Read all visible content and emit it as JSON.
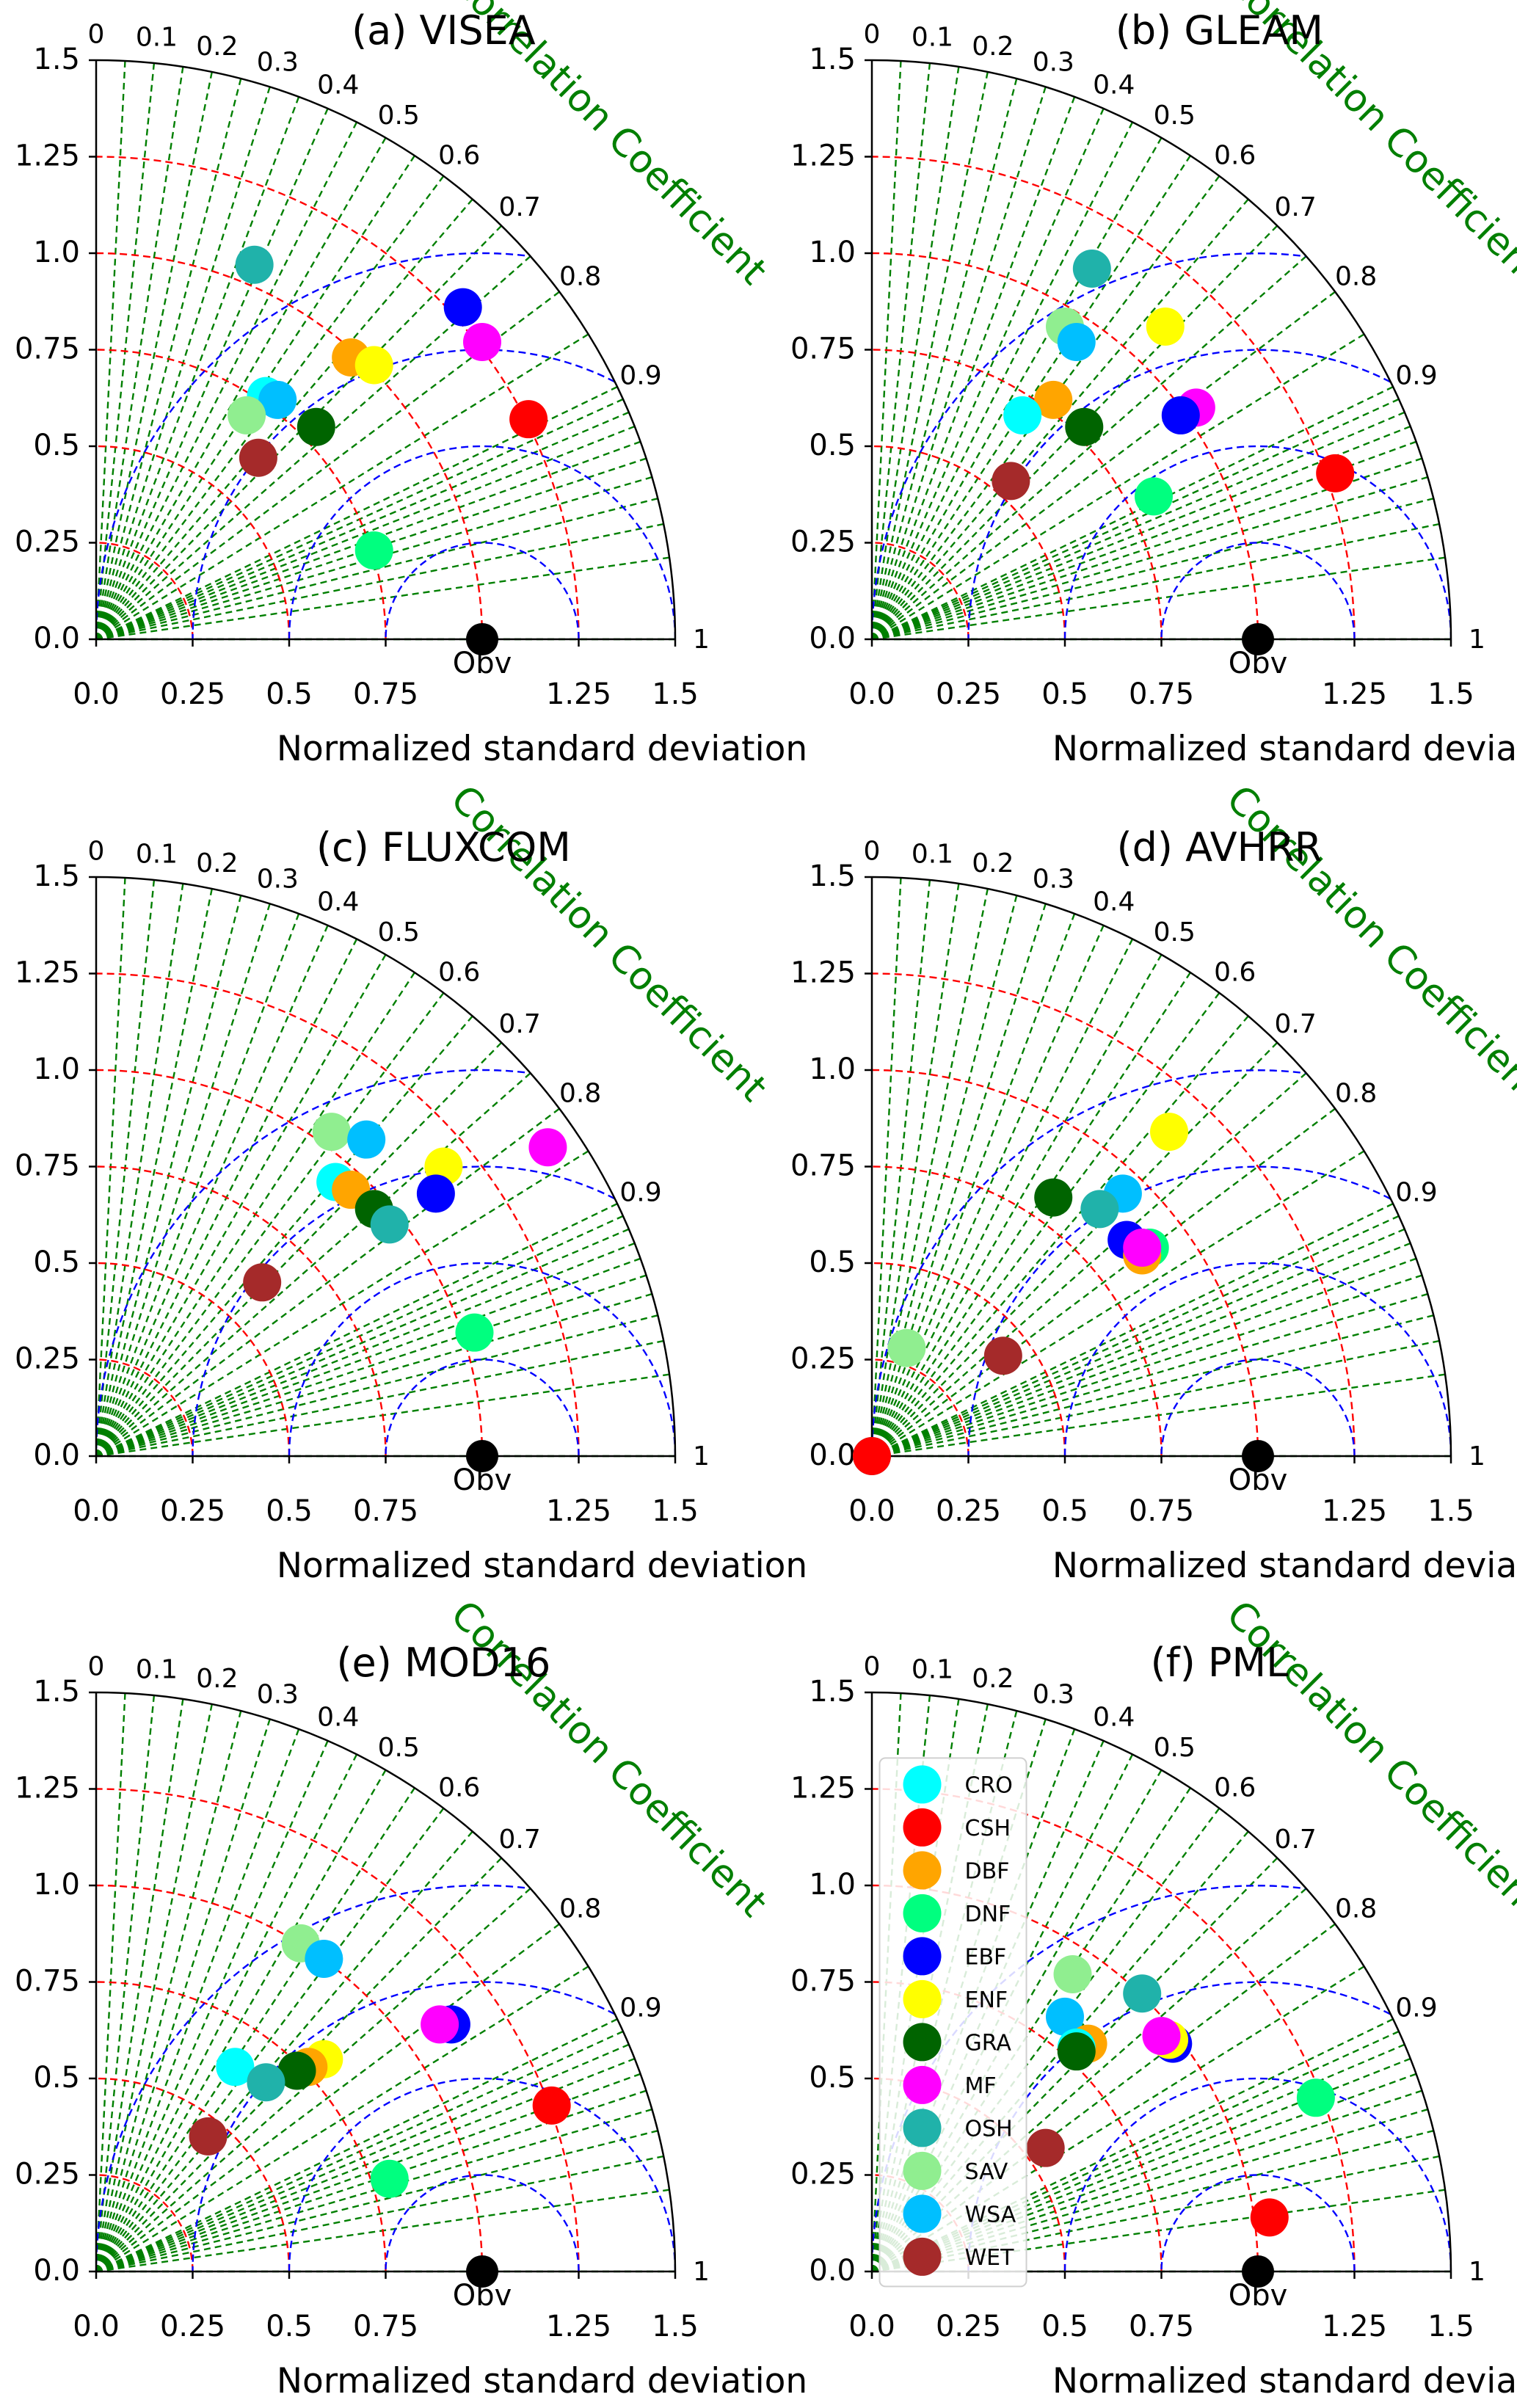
{
  "chart_data": {
    "type": "scatter",
    "subtype": "taylor-diagram",
    "xlabel": "Normalized standard deviation",
    "arc_label": "Correlation Coefficient",
    "reference_label": "Obv",
    "std_range": [
      0,
      1.5
    ],
    "std_ticks": [
      "0.0",
      "0.25",
      "0.5",
      "0.75",
      "1.0",
      "1.25",
      "1.5"
    ],
    "x_tick_labels": [
      "0.0",
      "0.25",
      "0.5",
      "0.75",
      "1.25",
      "1.5"
    ],
    "corr_ticks": [
      "0",
      "0.1",
      "0.2",
      "0.3",
      "0.4",
      "0.5",
      "0.6",
      "0.7",
      "0.8",
      "0.9",
      "1"
    ],
    "legend_panel": "(f) PML",
    "categories": [
      "CRO",
      "CSH",
      "DBF",
      "DNF",
      "EBF",
      "ENF",
      "GRA",
      "MF",
      "OSH",
      "SAV",
      "WSA",
      "WET"
    ],
    "colors": {
      "CRO": "#00ffff",
      "CSH": "#ff0000",
      "DBF": "#ffa500",
      "DNF": "#00ff7f",
      "EBF": "#0000ff",
      "ENF": "#ffff00",
      "GRA": "#006400",
      "MF": "#ff00ff",
      "OSH": "#20b2aa",
      "SAV": "#90ee90",
      "WSA": "#00bfff",
      "WET": "#a52a2a",
      "obs": "#000000",
      "rms_arcs": "#0000ff",
      "std_arcs": "#ff0000",
      "corr_lines": "#007f00"
    },
    "panels": [
      {
        "title": "(a) VISEA",
        "points": [
          {
            "cat": "OSH",
            "x": 0.41,
            "y": 0.97
          },
          {
            "cat": "EBF",
            "x": 0.95,
            "y": 0.86
          },
          {
            "cat": "MF",
            "x": 1.0,
            "y": 0.77
          },
          {
            "cat": "DBF",
            "x": 0.66,
            "y": 0.73
          },
          {
            "cat": "ENF",
            "x": 0.72,
            "y": 0.71
          },
          {
            "cat": "CRO",
            "x": 0.44,
            "y": 0.63
          },
          {
            "cat": "WSA",
            "x": 0.47,
            "y": 0.62
          },
          {
            "cat": "SAV",
            "x": 0.39,
            "y": 0.58
          },
          {
            "cat": "GRA",
            "x": 0.57,
            "y": 0.55
          },
          {
            "cat": "CSH",
            "x": 1.12,
            "y": 0.57
          },
          {
            "cat": "WET",
            "x": 0.42,
            "y": 0.47
          },
          {
            "cat": "DNF",
            "x": 0.72,
            "y": 0.23
          }
        ]
      },
      {
        "title": "(b) GLEAM",
        "points": [
          {
            "cat": "OSH",
            "x": 0.57,
            "y": 0.96
          },
          {
            "cat": "SAV",
            "x": 0.5,
            "y": 0.81
          },
          {
            "cat": "ENF",
            "x": 0.76,
            "y": 0.81
          },
          {
            "cat": "WSA",
            "x": 0.53,
            "y": 0.77
          },
          {
            "cat": "DBF",
            "x": 0.47,
            "y": 0.62
          },
          {
            "cat": "MF",
            "x": 0.84,
            "y": 0.6
          },
          {
            "cat": "EBF",
            "x": 0.8,
            "y": 0.58
          },
          {
            "cat": "CRO",
            "x": 0.39,
            "y": 0.58
          },
          {
            "cat": "GRA",
            "x": 0.55,
            "y": 0.55
          },
          {
            "cat": "CSH",
            "x": 1.2,
            "y": 0.43
          },
          {
            "cat": "WET",
            "x": 0.36,
            "y": 0.41
          },
          {
            "cat": "DNF",
            "x": 0.73,
            "y": 0.37
          }
        ]
      },
      {
        "title": "(c) FLUXCOM",
        "points": [
          {
            "cat": "SAV",
            "x": 0.61,
            "y": 0.84
          },
          {
            "cat": "WSA",
            "x": 0.7,
            "y": 0.82
          },
          {
            "cat": "MF",
            "x": 1.17,
            "y": 0.8
          },
          {
            "cat": "ENF",
            "x": 0.9,
            "y": 0.75
          },
          {
            "cat": "CRO",
            "x": 0.62,
            "y": 0.71
          },
          {
            "cat": "DBF",
            "x": 0.66,
            "y": 0.69
          },
          {
            "cat": "EBF",
            "x": 0.88,
            "y": 0.68
          },
          {
            "cat": "GRA",
            "x": 0.72,
            "y": 0.64
          },
          {
            "cat": "OSH",
            "x": 0.76,
            "y": 0.6
          },
          {
            "cat": "WET",
            "x": 0.43,
            "y": 0.45
          },
          {
            "cat": "DNF",
            "x": 0.98,
            "y": 0.32
          }
        ]
      },
      {
        "title": "(d) AVHRR",
        "points": [
          {
            "cat": "ENF",
            "x": 0.77,
            "y": 0.84
          },
          {
            "cat": "GRA",
            "x": 0.47,
            "y": 0.67
          },
          {
            "cat": "WSA",
            "x": 0.65,
            "y": 0.68
          },
          {
            "cat": "OSH",
            "x": 0.59,
            "y": 0.64
          },
          {
            "cat": "EBF",
            "x": 0.66,
            "y": 0.56
          },
          {
            "cat": "DNF",
            "x": 0.72,
            "y": 0.54
          },
          {
            "cat": "DBF",
            "x": 0.7,
            "y": 0.52
          },
          {
            "cat": "MF",
            "x": 0.7,
            "y": 0.54
          },
          {
            "cat": "SAV",
            "x": 0.09,
            "y": 0.28
          },
          {
            "cat": "WET",
            "x": 0.34,
            "y": 0.26
          },
          {
            "cat": "CRO",
            "x": 0.0,
            "y": 0.0
          },
          {
            "cat": "CSH",
            "x": 0.0,
            "y": 0.0
          }
        ]
      },
      {
        "title": "(e) MOD16",
        "points": [
          {
            "cat": "SAV",
            "x": 0.53,
            "y": 0.85
          },
          {
            "cat": "WSA",
            "x": 0.59,
            "y": 0.81
          },
          {
            "cat": "EBF",
            "x": 0.92,
            "y": 0.64
          },
          {
            "cat": "MF",
            "x": 0.89,
            "y": 0.64
          },
          {
            "cat": "ENF",
            "x": 0.59,
            "y": 0.55
          },
          {
            "cat": "DBF",
            "x": 0.55,
            "y": 0.53
          },
          {
            "cat": "CRO",
            "x": 0.36,
            "y": 0.53
          },
          {
            "cat": "GRA",
            "x": 0.52,
            "y": 0.52
          },
          {
            "cat": "OSH",
            "x": 0.44,
            "y": 0.49
          },
          {
            "cat": "CSH",
            "x": 1.18,
            "y": 0.43
          },
          {
            "cat": "WET",
            "x": 0.29,
            "y": 0.35
          },
          {
            "cat": "DNF",
            "x": 0.76,
            "y": 0.24
          }
        ]
      },
      {
        "title": "(f) PML",
        "points": [
          {
            "cat": "SAV",
            "x": 0.52,
            "y": 0.77
          },
          {
            "cat": "OSH",
            "x": 0.7,
            "y": 0.72
          },
          {
            "cat": "WSA",
            "x": 0.5,
            "y": 0.66
          },
          {
            "cat": "EBF",
            "x": 0.78,
            "y": 0.59
          },
          {
            "cat": "ENF",
            "x": 0.77,
            "y": 0.6
          },
          {
            "cat": "MF",
            "x": 0.75,
            "y": 0.61
          },
          {
            "cat": "DBF",
            "x": 0.56,
            "y": 0.59
          },
          {
            "cat": "CRO",
            "x": 0.53,
            "y": 0.58
          },
          {
            "cat": "GRA",
            "x": 0.53,
            "y": 0.57
          },
          {
            "cat": "DNF",
            "x": 1.15,
            "y": 0.45
          },
          {
            "cat": "WET",
            "x": 0.45,
            "y": 0.32
          },
          {
            "cat": "CSH",
            "x": 1.03,
            "y": 0.14
          }
        ]
      }
    ]
  }
}
